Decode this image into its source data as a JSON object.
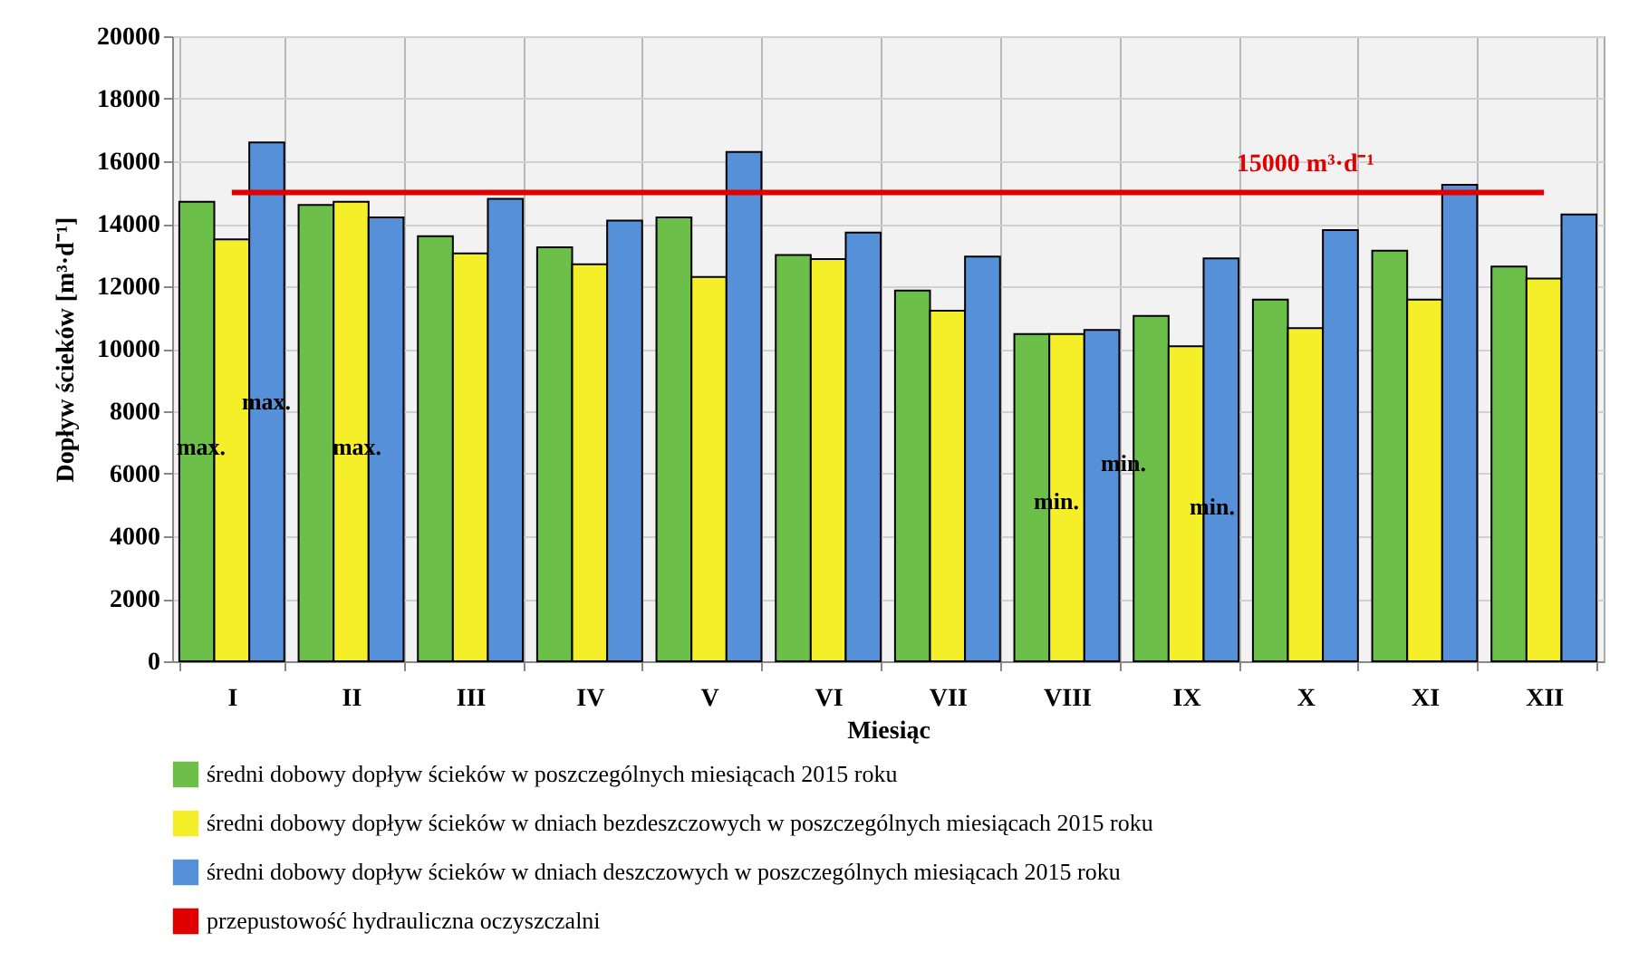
{
  "chart_data": {
    "type": "bar",
    "xlabel": "Miesiąc",
    "ylabel": "Dopływ ścieków [m³·d⁻¹]",
    "categories": [
      "I",
      "II",
      "III",
      "IV",
      "V",
      "VI",
      "VII",
      "VIII",
      "IX",
      "X",
      "XI",
      "XII"
    ],
    "series": [
      {
        "name": "średni dobowy dopływ ścieków w poszczególnych miesiącach 2015 roku",
        "color": "#6cc04a",
        "values": [
          14700,
          14600,
          13600,
          13250,
          14200,
          13000,
          11860,
          10470,
          11050,
          11570,
          13140,
          12630
        ]
      },
      {
        "name": "średni dobowy dopływ ścieków w dniach bezdeszczowych w poszczególnych miesiącach 2015 roku",
        "color": "#f5ef2a",
        "values": [
          13500,
          14700,
          13050,
          12700,
          12300,
          12870,
          11220,
          10470,
          10080,
          10660,
          11570,
          12250
        ]
      },
      {
        "name": "średni dobowy dopływ ścieków w dniach deszczowych w poszczególnych miesiącach 2015 roku",
        "color": "#5590d8",
        "values": [
          16600,
          14200,
          14800,
          14100,
          16300,
          13720,
          12950,
          10600,
          12890,
          13800,
          15250,
          14300
        ]
      },
      {
        "name": "przepustowość hydrauliczna oczyszczalni",
        "type": "line",
        "color": "#e00000",
        "values": [
          15000,
          15000,
          15000,
          15000,
          15000,
          15000,
          15000,
          15000,
          15000,
          15000,
          15000,
          15000
        ]
      }
    ],
    "ylim": [
      0,
      20000
    ],
    "yticks": [
      0,
      2000,
      4000,
      6000,
      8000,
      10000,
      12000,
      14000,
      16000,
      18000,
      20000
    ],
    "grid": true,
    "legend": "bottom",
    "marker": "none",
    "line_style": "solid",
    "annotations": [
      {
        "text": "15000 m³·d⁻¹",
        "x": "X",
        "y": 15000
      },
      "max.",
      "max.",
      "max.",
      "min.",
      "min.",
      "min."
    ]
  }
}
